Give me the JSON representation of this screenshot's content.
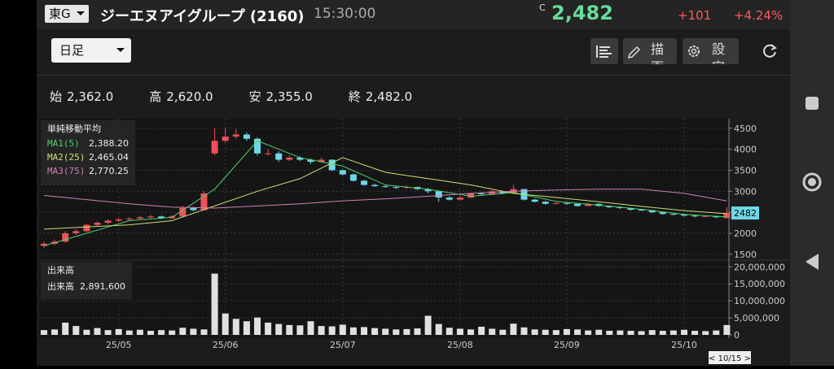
{
  "header": {
    "market": "東G",
    "title": "ジーエヌアイグループ (2160)",
    "time": "15:30:00",
    "price_flag": "C",
    "price": "2,482",
    "change": "+101",
    "change_pct": "+4.24%"
  },
  "toolbar": {
    "period": "日足",
    "draw": "描画",
    "settings": "設定"
  },
  "ohlc_row": [
    {
      "label": "始",
      "value": "2,362.0"
    },
    {
      "label": "高",
      "value": "2,620.0"
    },
    {
      "label": "安",
      "value": "2,355.0"
    },
    {
      "label": "終",
      "value": "2,482.0"
    }
  ],
  "chart_data": {
    "type": "candlestick",
    "categories": [
      null,
      null,
      null,
      null,
      null,
      null,
      null,
      "25/05",
      null,
      null,
      null,
      null,
      null,
      null,
      null,
      null,
      null,
      "25/06",
      null,
      null,
      null,
      null,
      null,
      null,
      null,
      null,
      null,
      null,
      "25/07",
      null,
      null,
      null,
      null,
      null,
      null,
      null,
      null,
      null,
      null,
      "25/08",
      null,
      null,
      null,
      null,
      null,
      null,
      null,
      null,
      null,
      "25/09",
      null,
      null,
      null,
      null,
      null,
      null,
      null,
      null,
      null,
      null,
      "25/10",
      null,
      null,
      null,
      null
    ],
    "ohlc": [
      [
        1700,
        1800,
        1650,
        1750
      ],
      [
        1750,
        1850,
        1720,
        1800
      ],
      [
        1800,
        2050,
        1780,
        2000
      ],
      [
        2000,
        2100,
        1960,
        2050
      ],
      [
        2050,
        2230,
        2030,
        2200
      ],
      [
        2200,
        2280,
        2170,
        2250
      ],
      [
        2250,
        2330,
        2220,
        2300
      ],
      [
        2300,
        2360,
        2270,
        2330
      ],
      [
        2330,
        2380,
        2300,
        2350
      ],
      [
        2350,
        2410,
        2320,
        2380
      ],
      [
        2380,
        2430,
        2350,
        2400
      ],
      [
        2400,
        2420,
        2330,
        2360
      ],
      [
        2360,
        2430,
        2340,
        2400
      ],
      [
        2400,
        2650,
        2390,
        2600
      ],
      [
        2600,
        2630,
        2520,
        2550
      ],
      [
        2550,
        3000,
        2540,
        2950
      ],
      [
        3900,
        4500,
        3850,
        4200
      ],
      [
        4200,
        4500,
        4150,
        4300
      ],
      [
        4300,
        4480,
        4250,
        4350
      ],
      [
        4350,
        4400,
        4200,
        4250
      ],
      [
        4250,
        4280,
        3850,
        3900
      ],
      [
        3900,
        4000,
        3850,
        3900
      ],
      [
        3900,
        3950,
        3700,
        3750
      ],
      [
        3750,
        3850,
        3720,
        3800
      ],
      [
        3800,
        3830,
        3720,
        3750
      ],
      [
        3750,
        3780,
        3650,
        3700
      ],
      [
        3700,
        3800,
        3680,
        3750
      ],
      [
        3750,
        3760,
        3480,
        3500
      ],
      [
        3500,
        3520,
        3380,
        3400
      ],
      [
        3400,
        3420,
        3230,
        3250
      ],
      [
        3250,
        3270,
        3130,
        3150
      ],
      [
        3150,
        3180,
        3100,
        3120
      ],
      [
        3120,
        3150,
        3080,
        3100
      ],
      [
        3100,
        3120,
        3050,
        3080
      ],
      [
        3080,
        3130,
        3060,
        3100
      ],
      [
        3100,
        3110,
        3030,
        3050
      ],
      [
        3050,
        3080,
        2950,
        3000
      ],
      [
        3000,
        3010,
        2750,
        2850
      ],
      [
        2850,
        2880,
        2780,
        2800
      ],
      [
        2800,
        2880,
        2790,
        2850
      ],
      [
        2850,
        2970,
        2840,
        2950
      ],
      [
        2950,
        2980,
        2900,
        2930
      ],
      [
        2930,
        3020,
        2920,
        3000
      ],
      [
        3000,
        3010,
        2930,
        2950
      ],
      [
        2950,
        3150,
        2940,
        3050
      ],
      [
        3050,
        3060,
        2780,
        2800
      ],
      [
        2800,
        2820,
        2730,
        2750
      ],
      [
        2750,
        2770,
        2680,
        2700
      ],
      [
        2700,
        2740,
        2690,
        2720
      ],
      [
        2720,
        2730,
        2680,
        2700
      ],
      [
        2700,
        2710,
        2630,
        2650
      ],
      [
        2650,
        2720,
        2640,
        2700
      ],
      [
        2700,
        2710,
        2630,
        2650
      ],
      [
        2650,
        2660,
        2600,
        2620
      ],
      [
        2620,
        2640,
        2580,
        2600
      ],
      [
        2600,
        2610,
        2540,
        2560
      ],
      [
        2560,
        2580,
        2530,
        2550
      ],
      [
        2550,
        2560,
        2480,
        2500
      ],
      [
        2500,
        2510,
        2440,
        2460
      ],
      [
        2460,
        2480,
        2430,
        2450
      ],
      [
        2450,
        2460,
        2400,
        2420
      ],
      [
        2420,
        2430,
        2380,
        2400
      ],
      [
        2400,
        2430,
        2390,
        2410
      ],
      [
        2410,
        2420,
        2360,
        2381
      ],
      [
        2362,
        2620,
        2355,
        2482
      ]
    ],
    "up_color": "#f0505a",
    "down_color": "#6fd8e8",
    "ylim": [
      1400,
      4650
    ],
    "yticks": [
      1500,
      2000,
      2500,
      3000,
      3500,
      4000,
      4500
    ],
    "grid": true,
    "price_tag": 2482,
    "ma_title": "単純移動平均",
    "series": [
      {
        "name": "MA1(5)",
        "current": "2,388.20",
        "color": "#4fd06a",
        "x": [
          0,
          4,
          8,
          12,
          16,
          20,
          24,
          28,
          32,
          36,
          40,
          44,
          48,
          52,
          56,
          60,
          64
        ],
        "values": [
          1700,
          2000,
          2300,
          2380,
          3050,
          4200,
          3800,
          3600,
          3150,
          3050,
          2880,
          2970,
          2760,
          2670,
          2570,
          2450,
          2388.2
        ]
      },
      {
        "name": "MA2(25)",
        "current": "2,465.04",
        "color": "#c9e07a",
        "x": [
          0,
          4,
          8,
          12,
          16,
          20,
          24,
          28,
          32,
          36,
          40,
          44,
          48,
          52,
          56,
          60,
          64
        ],
        "values": [
          2100,
          2150,
          2200,
          2300,
          2650,
          3000,
          3300,
          3800,
          3450,
          3300,
          3150,
          2950,
          2850,
          2750,
          2640,
          2540,
          2465.04
        ]
      },
      {
        "name": "MA3(75)",
        "current": "2,770.25",
        "color": "#d27fb4",
        "x": [
          0,
          4,
          8,
          12,
          16,
          20,
          24,
          28,
          32,
          36,
          40,
          44,
          48,
          52,
          56,
          60,
          64
        ],
        "values": [
          2900,
          2800,
          2700,
          2620,
          2600,
          2650,
          2700,
          2770,
          2820,
          2880,
          2950,
          3000,
          3030,
          3050,
          3050,
          2950,
          2770.25
        ]
      }
    ],
    "volume": {
      "title": "出来高",
      "legend_name": "出来高",
      "legend_value": "2,891,600",
      "color": "#e0e0e0",
      "values": [
        1400000,
        1600000,
        3600000,
        2600000,
        1500000,
        2000000,
        1400000,
        1700000,
        1300000,
        1500000,
        1200000,
        1400000,
        1300000,
        2100000,
        1800000,
        1600000,
        18000000,
        6300000,
        4700000,
        4000000,
        5100000,
        3600000,
        3200000,
        2900000,
        2800000,
        4000000,
        2600000,
        2500000,
        3000000,
        2200000,
        2300000,
        2000000,
        1800000,
        1600000,
        1700000,
        1900000,
        5600000,
        3200000,
        2100000,
        1800000,
        1600000,
        2400000,
        1800000,
        1500000,
        3300000,
        2200000,
        1600000,
        1500000,
        1400000,
        1700000,
        1600000,
        1300000,
        1500000,
        1200000,
        1300000,
        1200000,
        1100000,
        1400000,
        1200000,
        1300000,
        1500000,
        1200000,
        1100000,
        1300000,
        2891600
      ],
      "ylim": [
        0,
        21500000
      ],
      "yticks": [
        0,
        {
          "value": 5000000,
          "label": "5,000,000"
        },
        {
          "value": 10000000,
          "label": "10,000,000"
        },
        {
          "value": 15000000,
          "label": "15,000,000"
        },
        {
          "value": 20000000,
          "label": "20,000,000"
        }
      ]
    },
    "date_tag": "< 10/15 >"
  }
}
